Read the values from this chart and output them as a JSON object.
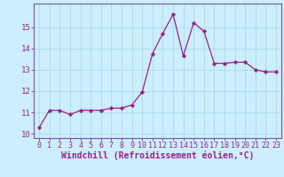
{
  "x": [
    0,
    1,
    2,
    3,
    4,
    5,
    6,
    7,
    8,
    9,
    10,
    11,
    12,
    13,
    14,
    15,
    16,
    17,
    18,
    19,
    20,
    21,
    22,
    23
  ],
  "y": [
    10.3,
    11.1,
    11.1,
    10.9,
    11.1,
    11.1,
    11.1,
    11.2,
    11.2,
    11.35,
    11.95,
    13.75,
    14.7,
    15.6,
    13.65,
    15.2,
    14.8,
    13.3,
    13.3,
    13.35,
    13.35,
    13.0,
    12.9,
    12.9
  ],
  "line_color": "#992288",
  "marker": "D",
  "marker_size": 2.2,
  "bg_color": "#cceeff",
  "grid_color": "#aadddd",
  "xlabel": "Windchill (Refroidissement éolien,°C)",
  "xlim": [
    -0.5,
    23.5
  ],
  "ylim": [
    9.8,
    16.1
  ],
  "yticks": [
    10,
    11,
    12,
    13,
    14,
    15
  ],
  "xticks": [
    0,
    1,
    2,
    3,
    4,
    5,
    6,
    7,
    8,
    9,
    10,
    11,
    12,
    13,
    14,
    15,
    16,
    17,
    18,
    19,
    20,
    21,
    22,
    23
  ],
  "tick_color": "#992288",
  "spine_color": "#7755aa",
  "tick_fontsize": 6.0,
  "xlabel_fontsize": 7.0
}
